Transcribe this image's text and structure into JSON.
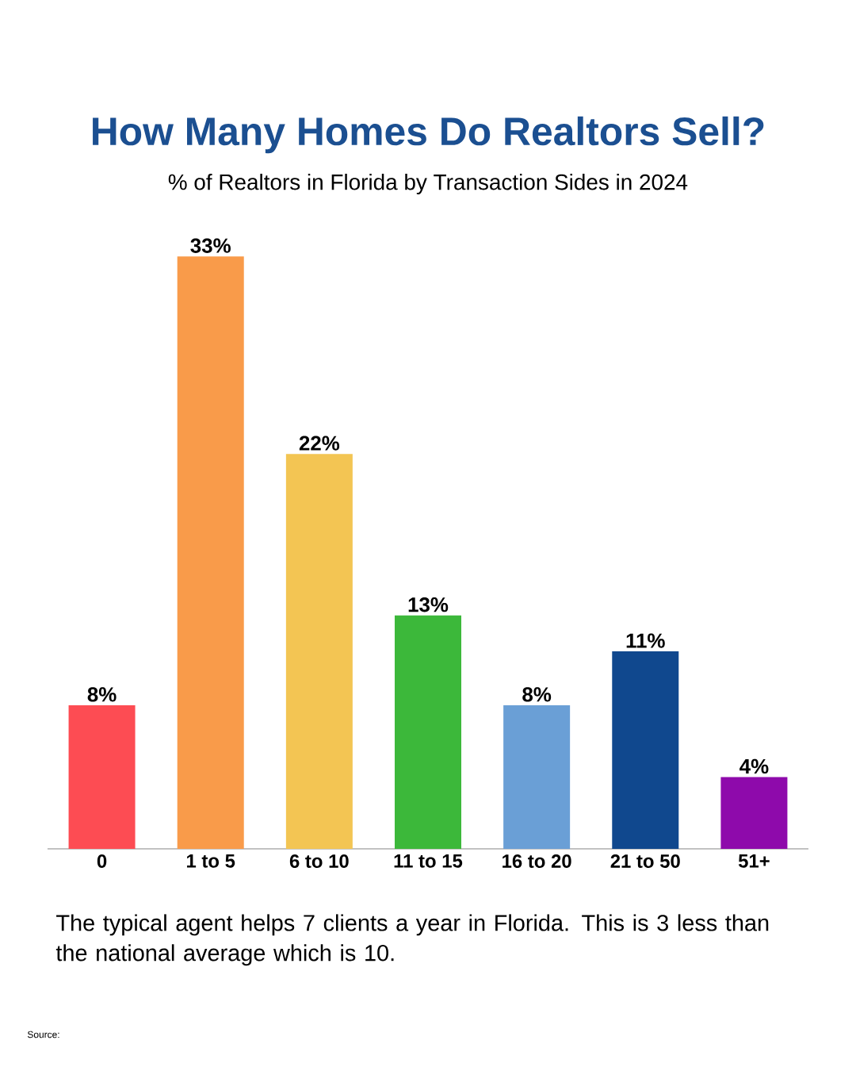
{
  "chart_data": {
    "type": "bar",
    "title": "How Many Homes Do Realtors Sell?",
    "subtitle": "% of Realtors in Florida by Transaction Sides in 2024",
    "categories": [
      "0",
      "1 to 5",
      "6 to 10",
      "11 to 15",
      "16 to 20",
      "21 to 50",
      "51+"
    ],
    "values": [
      8,
      33,
      22,
      13,
      8,
      11,
      4
    ],
    "value_labels": [
      "8%",
      "33%",
      "22%",
      "13%",
      "8%",
      "11%",
      "4%"
    ],
    "colors": [
      "#fd4c53",
      "#f99b4a",
      "#f3c553",
      "#3cb83a",
      "#6a9fd6",
      "#10488e",
      "#8e0aab"
    ],
    "annotations": [
      "The typical agent helps 7 clients a year in Florida. This is 3 less than the national average which is 10.",
      "Source:"
    ],
    "data_labels": false
  }
}
